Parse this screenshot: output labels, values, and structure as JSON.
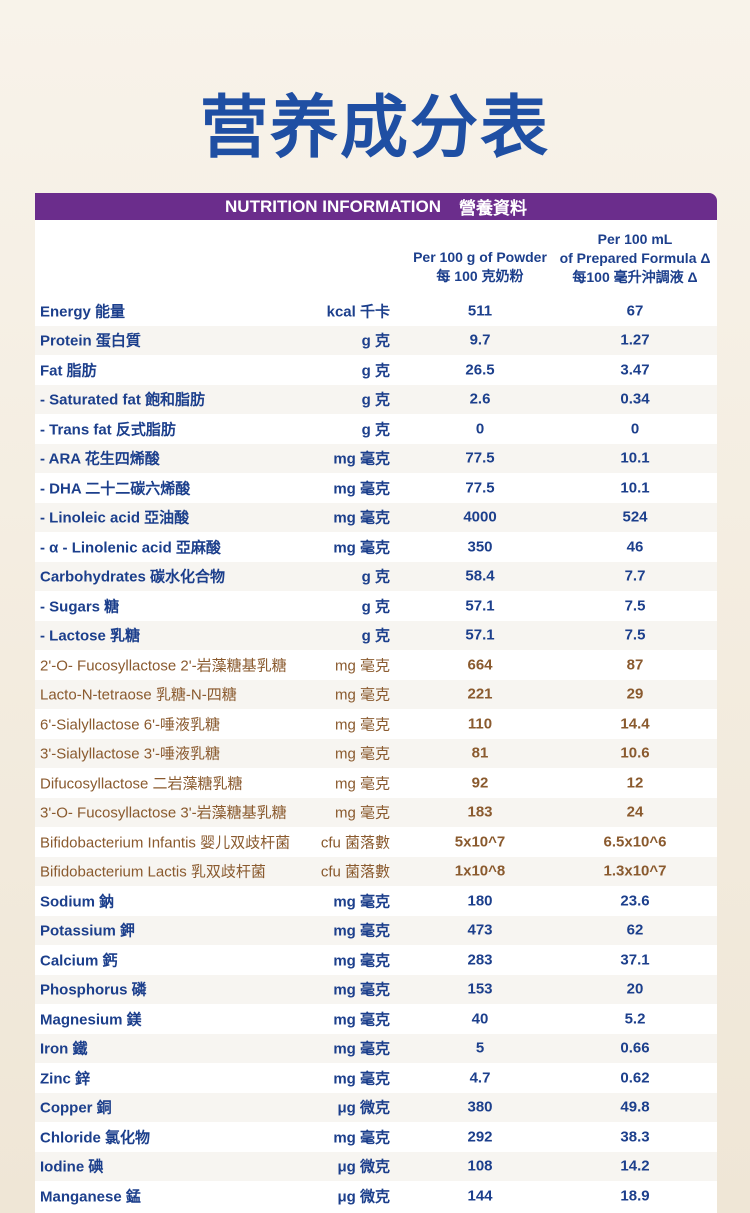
{
  "title": "营养成分表",
  "banner": {
    "en": "NUTRITION INFORMATION",
    "zh": "營養資料"
  },
  "columns": {
    "powder": [
      "Per 100 g of Powder",
      "每 100 克奶粉"
    ],
    "prepared": [
      "Per 100 mL",
      "of Prepared Formula Δ",
      "每100 毫升沖調液 Δ"
    ]
  },
  "rows": [
    {
      "name": "Energy 能量",
      "unit": "kcal 千卡",
      "powder": "511",
      "prepared": "67"
    },
    {
      "name": "Protein 蛋白質",
      "unit": "g 克",
      "powder": "9.7",
      "prepared": "1.27"
    },
    {
      "name": "Fat 脂肪",
      "unit": "g 克",
      "powder": "26.5",
      "prepared": "3.47"
    },
    {
      "name": "- Saturated fat 飽和脂肪",
      "unit": "g 克",
      "powder": "2.6",
      "prepared": "0.34"
    },
    {
      "name": "- Trans fat 反式脂肪",
      "unit": "g 克",
      "powder": "0",
      "prepared": "0"
    },
    {
      "name": "- ARA 花生四烯酸",
      "unit": "mg 毫克",
      "powder": "77.5",
      "prepared": "10.1"
    },
    {
      "name": "- DHA 二十二碳六烯酸",
      "unit": "mg 毫克",
      "powder": "77.5",
      "prepared": "10.1"
    },
    {
      "name": "- Linoleic acid 亞油酸",
      "unit": "mg 毫克",
      "powder": "4000",
      "prepared": "524"
    },
    {
      "name": "- α - Linolenic acid 亞麻酸",
      "unit": "mg 毫克",
      "powder": "350",
      "prepared": "46"
    },
    {
      "name": "Carbohydrates 碳水化合物",
      "unit": "g 克",
      "powder": "58.4",
      "prepared": "7.7"
    },
    {
      "name": "- Sugars 糖",
      "unit": "g 克",
      "powder": "57.1",
      "prepared": "7.5"
    },
    {
      "name": "- Lactose 乳糖",
      "unit": "g 克",
      "powder": "57.1",
      "prepared": "7.5"
    },
    {
      "name": "2'-O- Fucosyllactose 2'-岩藻糖基乳糖",
      "unit": "mg 毫克",
      "powder": "664",
      "prepared": "87",
      "color": "#8a5a2e"
    },
    {
      "name": "Lacto-N-tetraose 乳糖-N-四糖",
      "unit": "mg 毫克",
      "powder": "221",
      "prepared": "29",
      "color": "#8a5a2e"
    },
    {
      "name": "6'-Sialyllactose 6'-唾液乳糖",
      "unit": "mg 毫克",
      "powder": "110",
      "prepared": "14.4",
      "color": "#8a5a2e"
    },
    {
      "name": "3'-Sialyllactose 3'-唾液乳糖",
      "unit": "mg 毫克",
      "powder": "81",
      "prepared": "10.6",
      "color": "#8a5a2e"
    },
    {
      "name": "Difucosyllactose 二岩藻糖乳糖",
      "unit": "mg 毫克",
      "powder": "92",
      "prepared": "12",
      "color": "#8a5a2e"
    },
    {
      "name": "3'-O- Fucosyllactose 3'-岩藻糖基乳糖",
      "unit": "mg 毫克",
      "powder": "183",
      "prepared": "24",
      "color": "#8a5a2e"
    },
    {
      "name": "Bifidobacterium Infantis 婴儿双歧杆菌",
      "unit": "cfu 菌落數",
      "powder": "5x10^7",
      "prepared": "6.5x10^6",
      "color": "#8a5a2e"
    },
    {
      "name": "Bifidobacterium Lactis 乳双歧杆菌",
      "unit": "cfu 菌落數",
      "powder": "1x10^8",
      "prepared": "1.3x10^7",
      "color": "#8a5a2e"
    },
    {
      "name": "Sodium 鈉",
      "unit": "mg 毫克",
      "powder": "180",
      "prepared": "23.6"
    },
    {
      "name": "Potassium 鉀",
      "unit": "mg 毫克",
      "powder": "473",
      "prepared": "62"
    },
    {
      "name": "Calcium 鈣",
      "unit": "mg 毫克",
      "powder": "283",
      "prepared": "37.1"
    },
    {
      "name": "Phosphorus 磷",
      "unit": "mg 毫克",
      "powder": "153",
      "prepared": "20"
    },
    {
      "name": "Magnesium 鎂",
      "unit": "mg 毫克",
      "powder": "40",
      "prepared": "5.2"
    },
    {
      "name": "Iron 鐵",
      "unit": "mg 毫克",
      "powder": "5",
      "prepared": "0.66"
    },
    {
      "name": "Zinc 鋅",
      "unit": "mg 毫克",
      "powder": "4.7",
      "prepared": "0.62"
    },
    {
      "name": "Copper 銅",
      "unit": "μg 微克",
      "powder": "380",
      "prepared": "49.8"
    },
    {
      "name": "Chloride 氯化物",
      "unit": "mg 毫克",
      "powder": "292",
      "prepared": "38.3"
    },
    {
      "name": "Iodine 碘",
      "unit": "μg 微克",
      "powder": "108",
      "prepared": "14.2"
    },
    {
      "name": "Manganese 錳",
      "unit": "μg 微克",
      "powder": "144",
      "prepared": "18.9"
    }
  ]
}
